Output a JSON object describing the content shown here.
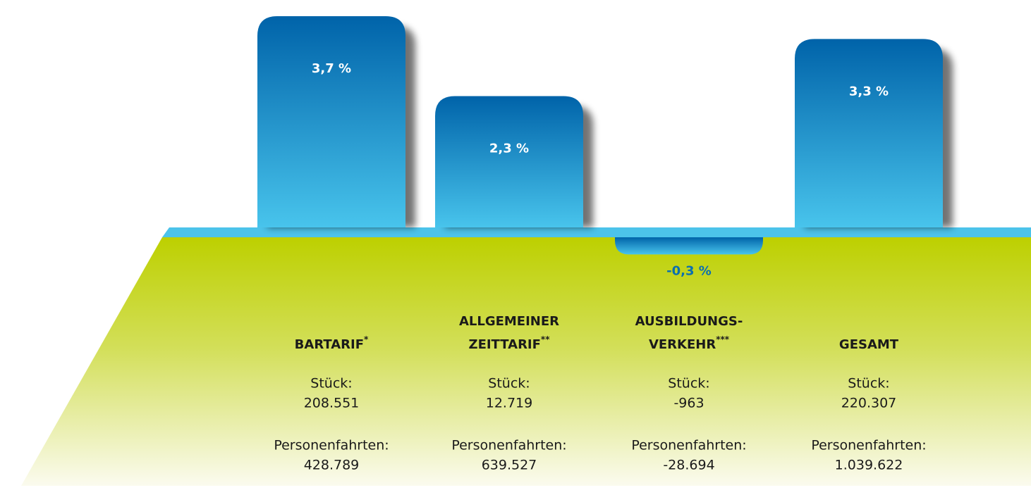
{
  "chart_data": {
    "type": "bar",
    "categories": [
      [
        "BARTARIF"
      ],
      [
        "ALLGEMEINER",
        "ZEITTARIF"
      ],
      [
        "AUSBILDUNGS-",
        "VERKEHR"
      ],
      [
        "GESAMT"
      ]
    ],
    "category_marks": [
      "*",
      "**",
      "***",
      null
    ],
    "values": [
      3.7,
      2.3,
      -0.3,
      3.3
    ],
    "value_labels": [
      "3,7 %",
      "2,3 %",
      "-0,3 %",
      "3,3 %"
    ],
    "stueck_label": "Stück:",
    "stueck": [
      "208.551",
      "12.719",
      "-963",
      "220.307"
    ],
    "fahrten_label": "Personenfahrten:",
    "fahrten": [
      "428.789",
      "639.527",
      "-28.694",
      "1.039.622"
    ],
    "color_top": "#0063a9",
    "color_bottom": "#48c4ec"
  }
}
